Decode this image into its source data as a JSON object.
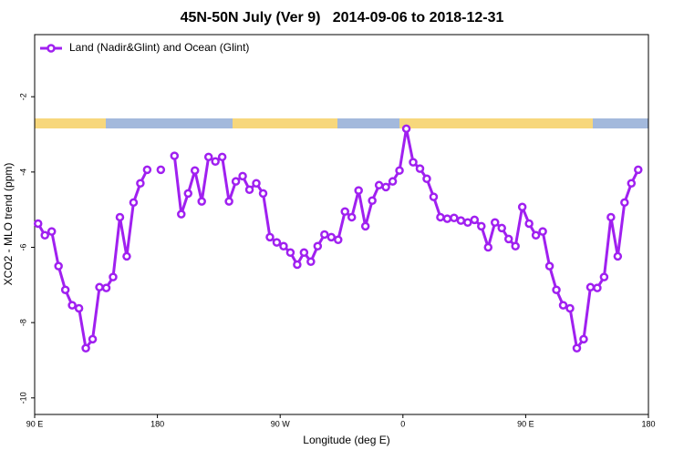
{
  "chart_data": {
    "type": "line",
    "title": "45N-50N July (Ver 9)   2014-09-06 to 2018-12-31",
    "xlabel": "Longitude (deg E)",
    "ylabel": "XCO2 - MLO trend (ppm)",
    "xlim": [
      90,
      540
    ],
    "ylim": [
      -10.44,
      -0.35
    ],
    "xticks": [
      {
        "value": 90,
        "label": "90 E"
      },
      {
        "value": 180,
        "label": "180"
      },
      {
        "value": 270,
        "label": "90 W"
      },
      {
        "value": 360,
        "label": "0"
      },
      {
        "value": 450,
        "label": "90 E"
      },
      {
        "value": 540,
        "label": "180"
      }
    ],
    "yticks": [
      -2,
      -4,
      -6,
      -8,
      -10
    ],
    "legend": "top-left",
    "x": [
      92.5,
      97.5,
      102.5,
      107.5,
      112.5,
      117.5,
      122.5,
      127.5,
      132.5,
      137.5,
      142.5,
      147.5,
      152.5,
      157.5,
      162.5,
      167.5,
      172.5,
      177.5,
      182.5,
      187.5,
      192.5,
      197.5,
      202.5,
      207.5,
      212.5,
      217.5,
      222.5,
      227.5,
      232.5,
      237.5,
      242.5,
      247.5,
      252.5,
      257.5,
      262.5,
      267.5,
      272.5,
      277.5,
      282.5,
      287.5,
      292.5,
      297.5,
      302.5,
      307.5,
      312.5,
      317.5,
      322.5,
      327.5,
      332.5,
      337.5,
      342.5,
      347.5,
      352.5,
      357.5,
      362.5,
      367.5,
      372.5,
      377.5,
      382.5,
      387.5,
      392.5,
      397.5,
      402.5,
      407.5,
      412.5,
      417.5,
      422.5,
      427.5,
      432.5,
      437.5,
      442.5,
      447.5,
      452.5,
      457.5,
      462.5,
      467.5,
      472.5,
      477.5,
      482.5,
      487.5,
      492.5,
      497.5,
      502.5,
      507.5,
      512.5,
      517.5,
      522.5,
      527.5,
      532.5,
      537.5
    ],
    "series": [
      {
        "name": "Land (Nadir&Glint) and Ocean (Glint)",
        "color": "#a020f0",
        "values": [
          -5.37,
          -5.68,
          -5.58,
          -6.5,
          -7.13,
          -7.54,
          -7.62,
          -8.68,
          -8.44,
          -7.06,
          -7.08,
          -6.79,
          -5.2,
          -6.24,
          -4.81,
          -4.3,
          -3.94,
          null,
          -3.94,
          null,
          -3.57,
          -5.12,
          -4.57,
          -3.96,
          -4.78,
          -3.6,
          -3.72,
          -3.6,
          -4.78,
          -4.25,
          -4.11,
          -4.47,
          -4.3,
          -4.57,
          -5.73,
          -5.87,
          -5.97,
          -6.14,
          -6.46,
          -6.14,
          -6.38,
          -5.97,
          -5.66,
          -5.73,
          -5.8,
          -5.05,
          -5.2,
          -4.49,
          -5.44,
          -4.76,
          -4.35,
          -4.4,
          -4.25,
          -3.96,
          -2.85,
          -3.74,
          -3.91,
          -4.18,
          -4.66,
          -5.2,
          -5.24,
          -5.22,
          -5.29,
          -5.34,
          -5.27,
          -5.44,
          -6.0,
          -5.34,
          -5.49,
          -5.78,
          -5.97,
          -4.93,
          -5.37,
          -5.68,
          -5.58,
          -6.5,
          -7.13,
          -7.54,
          -7.62,
          -8.68,
          -8.44,
          -7.06,
          -7.08,
          -6.79,
          -5.2,
          -6.24,
          -4.81,
          -4.3,
          -3.94,
          null
        ]
      }
    ]
  }
}
